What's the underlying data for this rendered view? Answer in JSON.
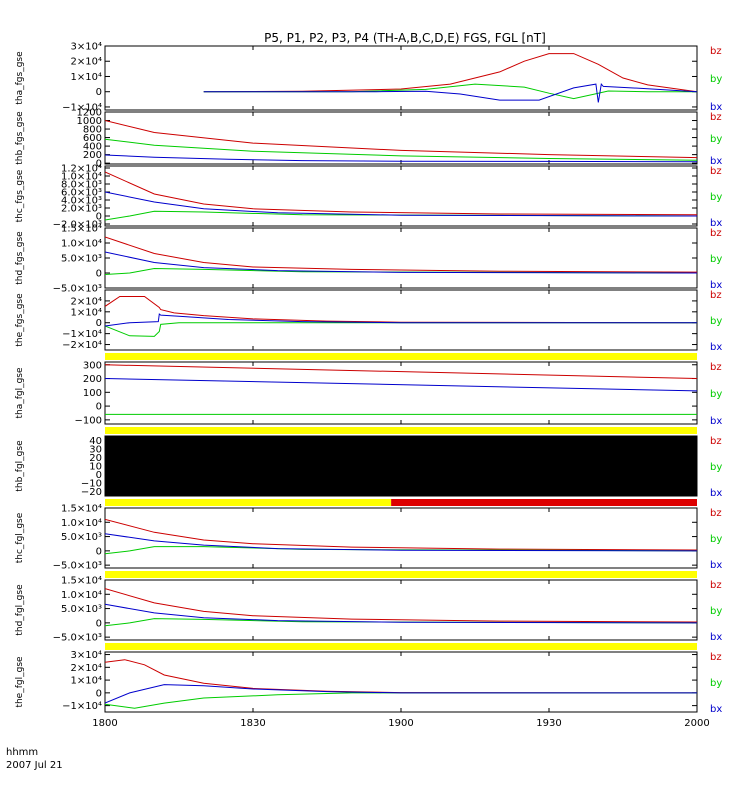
{
  "chart_data": {
    "type": "line",
    "title": "P5, P1, P2, P3, P4 (TH-A,B,C,D,E) FGS, FGL [nT]",
    "x_ticks": [
      "1800",
      "1830",
      "1900",
      "1930",
      "2000"
    ],
    "x_tick_minutes": [
      0,
      30,
      60,
      90,
      120
    ],
    "x_range_minutes": [
      0,
      120
    ],
    "footer_line1": "hhmm",
    "footer_line2": "2007 Jul 21",
    "colors": {
      "bx": "#0000cc",
      "by": "#00cc00",
      "bz": "#cc0000",
      "bar_valid": "#ffff00",
      "bar_invalid": "#dd0000"
    },
    "panels": [
      {
        "ylabel": "tha_fgs_gse",
        "ylim": [
          -12000,
          30000
        ],
        "ticks": [
          {
            "v": 30000,
            "t": "3×10⁴"
          },
          {
            "v": 20000,
            "t": "2×10⁴"
          },
          {
            "v": 10000,
            "t": "1×10⁴"
          },
          {
            "v": 0,
            "t": "0"
          },
          {
            "v": -10000,
            "t": "−1×10⁴"
          }
        ],
        "legend": [
          "bz",
          "by",
          "bx"
        ],
        "series": [
          {
            "name": "bz",
            "t": [
              20,
              40,
              60,
              70,
              80,
              85,
              90,
              95,
              100,
              105,
              110,
              120
            ],
            "v": [
              0,
              300,
              1800,
              5000,
              13000,
              20000,
              25000,
              25000,
              18000,
              9000,
              4500,
              0
            ]
          },
          {
            "name": "by",
            "t": [
              20,
              50,
              65,
              75,
              85,
              90,
              95,
              100,
              102,
              110,
              120
            ],
            "v": [
              0,
              0,
              1500,
              5000,
              3000,
              -1000,
              -4500,
              -1000,
              500,
              0,
              0
            ]
          },
          {
            "name": "bx",
            "t": [
              20,
              55,
              65,
              72,
              80,
              88,
              95,
              99.5,
              100,
              100.6,
              101,
              110,
              120
            ],
            "v": [
              0,
              0,
              300,
              -1500,
              -5500,
              -5500,
              2500,
              5000,
              -7000,
              5000,
              3500,
              2000,
              0
            ]
          }
        ]
      },
      {
        "ylabel": "thb_fgs_gse",
        "ylim": [
          -20,
          1200
        ],
        "ticks": [
          {
            "v": 1200,
            "t": "1200"
          },
          {
            "v": 1000,
            "t": "1000"
          },
          {
            "v": 800,
            "t": "800"
          },
          {
            "v": 600,
            "t": "600"
          },
          {
            "v": 400,
            "t": "400"
          },
          {
            "v": 200,
            "t": "200"
          },
          {
            "v": 0,
            "t": "0"
          }
        ],
        "legend": [
          "bz",
          "by",
          "bx"
        ],
        "series": [
          {
            "name": "bz",
            "t": [
              0,
              10,
              30,
              60,
              90,
              120
            ],
            "v": [
              1000,
              720,
              470,
              300,
              200,
              130
            ]
          },
          {
            "name": "by",
            "t": [
              0,
              10,
              30,
              60,
              90,
              120
            ],
            "v": [
              560,
              420,
              280,
              170,
              110,
              70
            ]
          },
          {
            "name": "bx",
            "t": [
              0,
              10,
              25,
              40,
              60,
              90,
              120
            ],
            "v": [
              190,
              140,
              90,
              60,
              45,
              40,
              35
            ]
          }
        ]
      },
      {
        "ylabel": "thc_fgs_gse",
        "ylim": [
          -2500,
          12500
        ],
        "ticks": [
          {
            "v": 12000,
            "t": "1.2×10⁴"
          },
          {
            "v": 10000,
            "t": "1.0×10⁴"
          },
          {
            "v": 8000,
            "t": "8.0×10³"
          },
          {
            "v": 6000,
            "t": "6.0×10³"
          },
          {
            "v": 4000,
            "t": "4.0×10³"
          },
          {
            "v": 2000,
            "t": "2.0×10³"
          },
          {
            "v": 0,
            "t": "0"
          },
          {
            "v": -2000,
            "t": "−2.0×10³"
          }
        ],
        "legend": [
          "bz",
          "by",
          "bx"
        ],
        "series": [
          {
            "name": "bz",
            "t": [
              0,
              10,
              20,
              30,
              50,
              80,
              120
            ],
            "v": [
              11000,
              5500,
              3000,
              1800,
              1000,
              500,
              300
            ]
          },
          {
            "name": "by",
            "t": [
              0,
              5,
              10,
              20,
              40,
              120
            ],
            "v": [
              -1000,
              0,
              1200,
              1000,
              300,
              0
            ]
          },
          {
            "name": "bx",
            "t": [
              0,
              10,
              20,
              35,
              60,
              120
            ],
            "v": [
              6000,
              3500,
              1800,
              800,
              200,
              0
            ]
          }
        ]
      },
      {
        "ylabel": "thd_fgs_gse",
        "ylim": [
          -5000,
          15000
        ],
        "ticks": [
          {
            "v": 15000,
            "t": "1.5×10⁴"
          },
          {
            "v": 10000,
            "t": "1.0×10⁴"
          },
          {
            "v": 5000,
            "t": "5.0×10³"
          },
          {
            "v": 0,
            "t": "0"
          },
          {
            "v": -5000,
            "t": "−5.0×10³"
          }
        ],
        "legend": [
          "bz",
          "by",
          "bx"
        ],
        "series": [
          {
            "name": "bz",
            "t": [
              0,
              10,
              20,
              30,
              50,
              80,
              120
            ],
            "v": [
              12000,
              6500,
              3500,
              2000,
              1200,
              600,
              300
            ]
          },
          {
            "name": "by",
            "t": [
              0,
              5,
              10,
              20,
              40,
              120
            ],
            "v": [
              -500,
              0,
              1500,
              1200,
              400,
              0
            ]
          },
          {
            "name": "bx",
            "t": [
              0,
              10,
              20,
              35,
              60,
              120
            ],
            "v": [
              7000,
              3500,
              1800,
              800,
              200,
              0
            ]
          }
        ]
      },
      {
        "ylabel": "the_fgs_gse",
        "ylim": [
          -25000,
          30000
        ],
        "ticks": [
          {
            "v": 20000,
            "t": "2×10⁴"
          },
          {
            "v": 10000,
            "t": "1×10⁴"
          },
          {
            "v": 0,
            "t": "0"
          },
          {
            "v": -10000,
            "t": "−1×10⁴"
          },
          {
            "v": -20000,
            "t": "−2×10⁴"
          }
        ],
        "legend": [
          "bz",
          "by",
          "bx"
        ],
        "series": [
          {
            "name": "bz",
            "t": [
              0,
              3,
              8,
              11,
              11.3,
              14,
              20,
              30,
              45,
              60,
              120
            ],
            "v": [
              15000,
              24000,
              24000,
              14000,
              12000,
              9000,
              6500,
              3500,
              1500,
              500,
              0
            ]
          },
          {
            "name": "by",
            "t": [
              0,
              5,
              10,
              11,
              11.3,
              15,
              25,
              40,
              60,
              120
            ],
            "v": [
              -3000,
              -12000,
              -12500,
              -8000,
              -1500,
              0,
              0,
              0,
              0,
              0
            ]
          },
          {
            "name": "bx",
            "t": [
              0,
              5,
              10.8,
              11,
              11.3,
              15,
              25,
              40,
              60,
              120
            ],
            "v": [
              -3000,
              0,
              1000,
              8000,
              7000,
              6000,
              3000,
              1000,
              0,
              0
            ]
          }
        ],
        "bar": [
          {
            "from": 0,
            "to": 120,
            "state": "valid"
          }
        ]
      },
      {
        "ylabel": "tha_fgl_gse",
        "ylim": [
          -130,
          320
        ],
        "ticks": [
          {
            "v": 300,
            "t": "300"
          },
          {
            "v": 200,
            "t": "200"
          },
          {
            "v": 100,
            "t": "100"
          },
          {
            "v": 0,
            "t": "0"
          },
          {
            "v": -100,
            "t": "−100"
          }
        ],
        "legend": [
          "bz",
          "by",
          "bx"
        ],
        "series": [
          {
            "name": "bz",
            "t": [
              0,
              120
            ],
            "v": [
              300,
              200
            ]
          },
          {
            "name": "by",
            "t": [
              0,
              120
            ],
            "v": [
              -60,
              -60
            ]
          },
          {
            "name": "bx",
            "t": [
              0,
              120
            ],
            "v": [
              200,
              110
            ]
          }
        ],
        "bar": [
          {
            "from": 0,
            "to": 120,
            "state": "valid"
          }
        ]
      },
      {
        "ylabel": "thb_fgl_gse",
        "ylim": [
          -25,
          45
        ],
        "ticks": [
          {
            "v": 40,
            "t": "40"
          },
          {
            "v": 30,
            "t": "30"
          },
          {
            "v": 20,
            "t": "20"
          },
          {
            "v": 10,
            "t": "10"
          },
          {
            "v": 0,
            "t": "0"
          },
          {
            "v": -10,
            "t": "−10"
          },
          {
            "v": -20,
            "t": "−20"
          }
        ],
        "legend": [
          "bz",
          "by",
          "bx"
        ],
        "series": [],
        "filled": true,
        "bar": [
          {
            "from": 0,
            "to": 58,
            "state": "valid"
          },
          {
            "from": 58,
            "to": 120,
            "state": "invalid"
          }
        ]
      },
      {
        "ylabel": "thc_fgl_gse",
        "ylim": [
          -6000,
          15000
        ],
        "ticks": [
          {
            "v": 15000,
            "t": "1.5×10⁴"
          },
          {
            "v": 10000,
            "t": "1.0×10⁴"
          },
          {
            "v": 5000,
            "t": "5.0×10³"
          },
          {
            "v": 0,
            "t": "0"
          },
          {
            "v": -5000,
            "t": "−5.0×10³"
          }
        ],
        "legend": [
          "bz",
          "by",
          "bx"
        ],
        "series": [
          {
            "name": "bz",
            "t": [
              0,
              10,
              20,
              30,
              50,
              80,
              120
            ],
            "v": [
              11000,
              6500,
              3800,
              2500,
              1300,
              600,
              300
            ]
          },
          {
            "name": "by",
            "t": [
              0,
              5,
              10,
              20,
              40,
              120
            ],
            "v": [
              -1000,
              0,
              1500,
              1500,
              500,
              0
            ]
          },
          {
            "name": "bx",
            "t": [
              0,
              10,
              20,
              35,
              60,
              120
            ],
            "v": [
              6000,
              3500,
              2000,
              800,
              200,
              0
            ]
          }
        ],
        "bar": [
          {
            "from": 0,
            "to": 120,
            "state": "valid"
          }
        ]
      },
      {
        "ylabel": "thd_fgl_gse",
        "ylim": [
          -6000,
          15000
        ],
        "ticks": [
          {
            "v": 15000,
            "t": "1.5×10⁴"
          },
          {
            "v": 10000,
            "t": "1.0×10⁴"
          },
          {
            "v": 5000,
            "t": "5.0×10³"
          },
          {
            "v": 0,
            "t": "0"
          },
          {
            "v": -5000,
            "t": "−5.0×10³"
          }
        ],
        "legend": [
          "bz",
          "by",
          "bx"
        ],
        "series": [
          {
            "name": "bz",
            "t": [
              0,
              10,
              20,
              30,
              50,
              80,
              120
            ],
            "v": [
              12000,
              7000,
              4000,
              2500,
              1300,
              600,
              300
            ]
          },
          {
            "name": "by",
            "t": [
              0,
              5,
              10,
              20,
              40,
              120
            ],
            "v": [
              -1000,
              0,
              1500,
              1200,
              400,
              0
            ]
          },
          {
            "name": "bx",
            "t": [
              0,
              10,
              20,
              35,
              60,
              120
            ],
            "v": [
              6500,
              3500,
              1800,
              800,
              200,
              0
            ]
          }
        ],
        "bar": [
          {
            "from": 0,
            "to": 120,
            "state": "valid"
          }
        ]
      },
      {
        "ylabel": "the_fgl_gse",
        "ylim": [
          -15000,
          32000
        ],
        "ticks": [
          {
            "v": 30000,
            "t": "3×10⁴"
          },
          {
            "v": 20000,
            "t": "2×10⁴"
          },
          {
            "v": 10000,
            "t": "1×10⁴"
          },
          {
            "v": 0,
            "t": "0"
          },
          {
            "v": -10000,
            "t": "−1×10⁴"
          }
        ],
        "legend": [
          "bz",
          "by",
          "bx"
        ],
        "series": [
          {
            "name": "bz",
            "t": [
              0,
              4,
              8,
              12,
              20,
              30,
              45,
              60,
              120
            ],
            "v": [
              24000,
              26000,
              22000,
              14000,
              7500,
              3500,
              1200,
              200,
              0
            ]
          },
          {
            "name": "by",
            "t": [
              0,
              6,
              12,
              20,
              35,
              50,
              120
            ],
            "v": [
              -9000,
              -12000,
              -8000,
              -4000,
              -1500,
              0,
              0
            ]
          },
          {
            "name": "bx",
            "t": [
              0,
              5,
              12,
              20,
              30,
              45,
              60,
              120
            ],
            "v": [
              -8000,
              0,
              6500,
              5500,
              3000,
              1000,
              0,
              0
            ]
          }
        ]
      }
    ]
  }
}
